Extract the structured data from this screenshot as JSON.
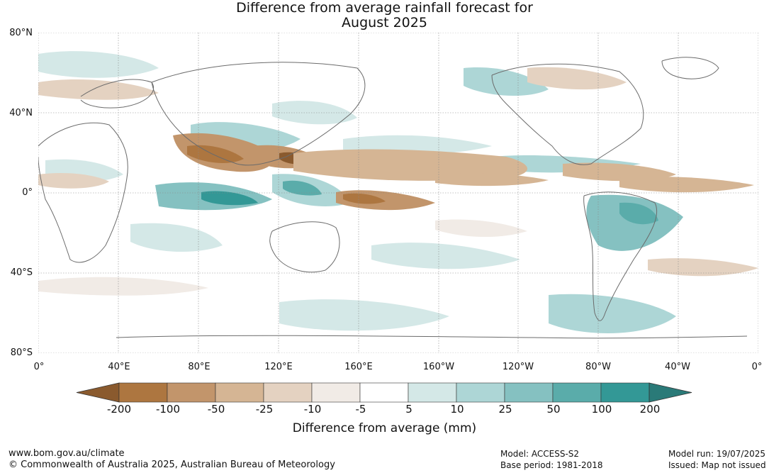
{
  "title": {
    "line1": "Difference from average rainfall forecast for",
    "line2": "August 2025"
  },
  "lat_labels": [
    "80°N",
    "40°N",
    "0°",
    "40°S",
    "80°S"
  ],
  "lon_labels": [
    "0°",
    "40°E",
    "80°E",
    "120°E",
    "160°E",
    "160°W",
    "120°W",
    "80°W",
    "40°W",
    "0°"
  ],
  "colorbar": {
    "labels": [
      "-200",
      "-100",
      "-50",
      "-25",
      "-10",
      "-5",
      "5",
      "10",
      "25",
      "50",
      "100",
      "200"
    ],
    "colors": [
      "#8a5a2e",
      "#ad7640",
      "#c2956b",
      "#d5b594",
      "#e4d2c1",
      "#f1ebe6",
      "#ffffff",
      "#d4e8e7",
      "#add6d6",
      "#85c1c1",
      "#5aacaa",
      "#339896",
      "#2a7a78"
    ],
    "title": "Difference from average (mm)"
  },
  "footer": {
    "url": "www.bom.gov.au/climate",
    "copyright": "© Commonwealth of Australia 2025, Australian Bureau of Meteorology",
    "model": "Model: ACCESS-S2",
    "base_period": "Base period: 1981-2018",
    "model_run": "Model run: 19/07/2025",
    "issued": "Issued: Map not issued"
  }
}
